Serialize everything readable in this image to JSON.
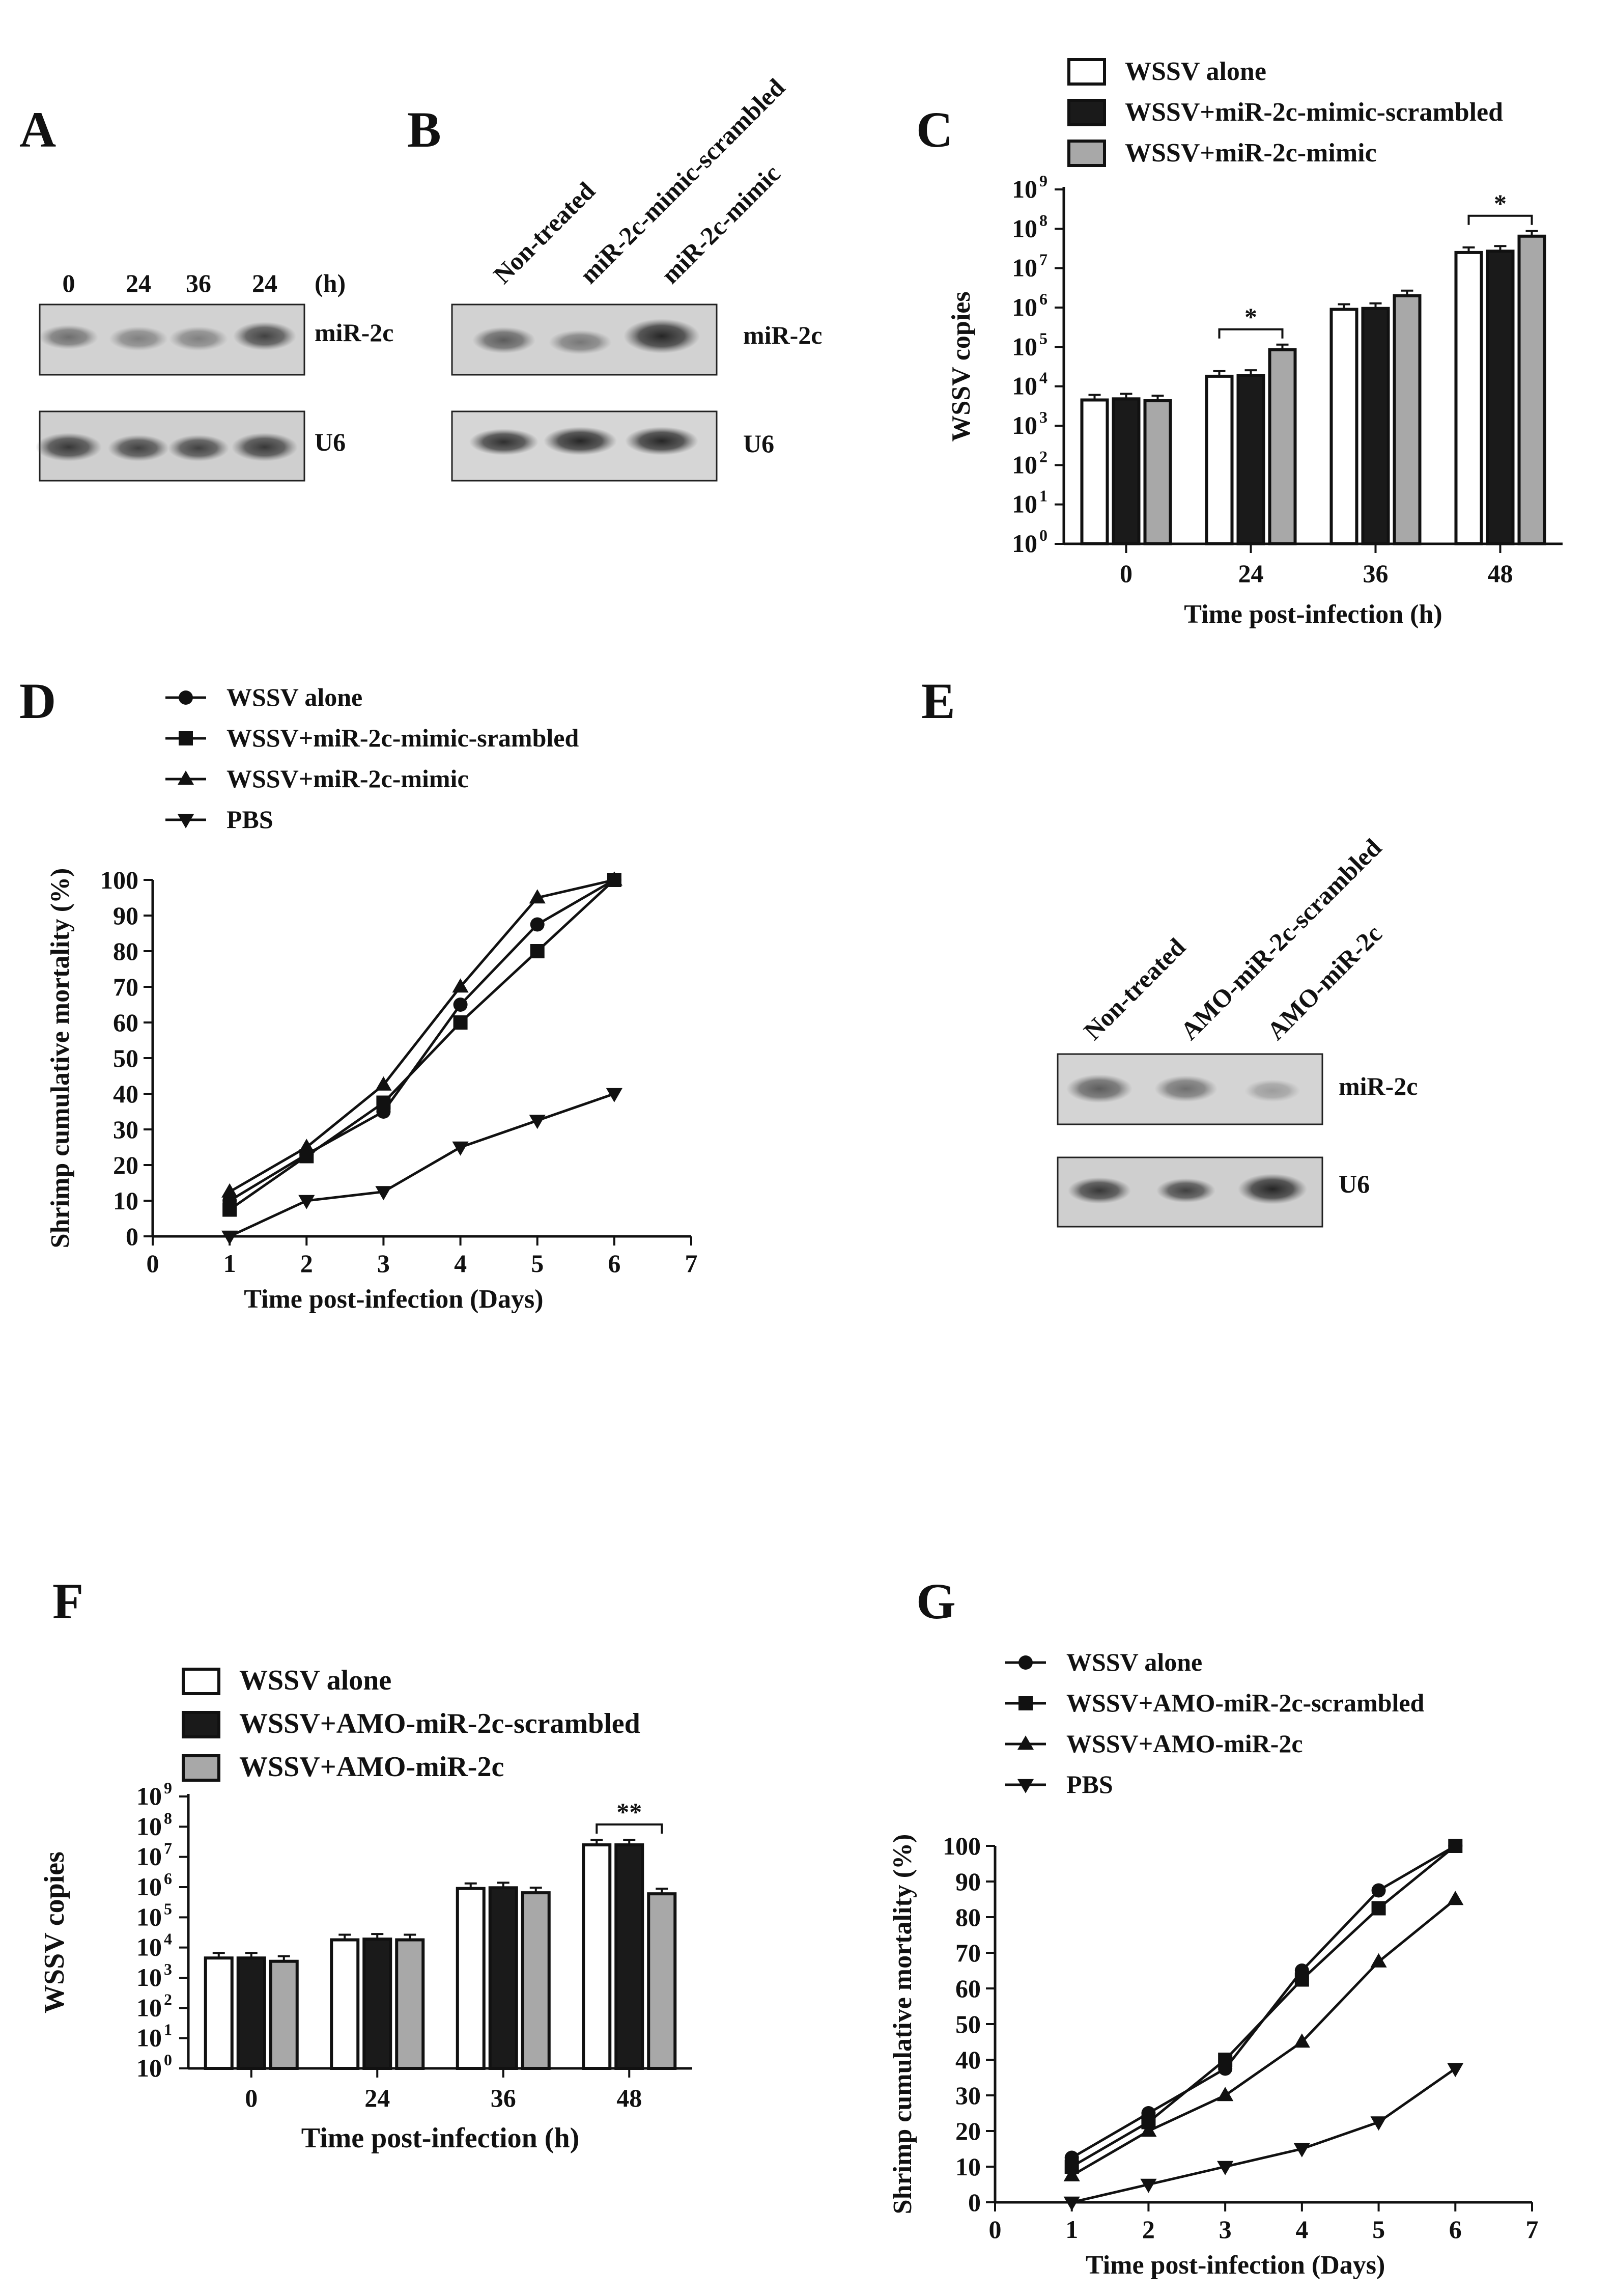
{
  "panels": {
    "A": {
      "letter": "A",
      "lanes": [
        "0",
        "24",
        "36",
        "24"
      ],
      "unit": "(h)",
      "bands": [
        "miR-2c",
        "U6"
      ]
    },
    "B": {
      "letter": "B",
      "lanes": [
        "Non-treated",
        "miR-2c-mimic-scrambled",
        "miR-2c-mimic"
      ],
      "bands": [
        "miR-2c",
        "U6"
      ]
    },
    "E": {
      "letter": "E",
      "lanes": [
        "Non-treated",
        "AMO-miR-2c-scrambled",
        "AMO-miR-2c"
      ],
      "bands": [
        "miR-2c",
        "U6"
      ]
    },
    "C": {
      "letter": "C"
    },
    "D": {
      "letter": "D"
    },
    "F": {
      "letter": "F"
    },
    "G": {
      "letter": "G"
    }
  },
  "chart_data": [
    {
      "id": "C",
      "type": "bar",
      "scale": "log10",
      "categories": [
        "0",
        "24",
        "36",
        "48"
      ],
      "series": [
        {
          "name": "WSSV alone",
          "color": "#ffffff",
          "values": [
            4500,
            18000,
            900000,
            25000000
          ]
        },
        {
          "name": "WSSV+miR-2c-mimic-scrambled",
          "color": "#1a1a1a",
          "values": [
            4800,
            19000,
            950000,
            27000000
          ]
        },
        {
          "name": "WSSV+miR-2c-mimic",
          "color": "#a8a8a8",
          "values": [
            4300,
            85000,
            2000000,
            65000000
          ]
        }
      ],
      "ytick_exponents": [
        0,
        1,
        2,
        3,
        4,
        5,
        6,
        7,
        8,
        9
      ],
      "ytick_base": "10",
      "ylim_exponent": [
        0,
        9
      ],
      "xlabel": "Time post-infection (h)",
      "ylabel": "WSSV copies",
      "significance": [
        {
          "category": "24",
          "label": "*"
        },
        {
          "category": "48",
          "label": "*"
        }
      ]
    },
    {
      "id": "D",
      "type": "line",
      "x": [
        1,
        2,
        3,
        4,
        5,
        6
      ],
      "series": [
        {
          "name": "WSSV alone",
          "marker": "circle",
          "values": [
            10,
            23,
            35,
            65,
            87.5,
            100
          ]
        },
        {
          "name": "WSSV+miR-2c-mimic-srambled",
          "marker": "square",
          "values": [
            7.5,
            22.5,
            37.5,
            60,
            80,
            100
          ]
        },
        {
          "name": "WSSV+miR-2c-mimic",
          "marker": "triangle-up",
          "values": [
            12.5,
            25,
            42.5,
            70,
            95,
            100
          ]
        },
        {
          "name": "PBS",
          "marker": "triangle-down",
          "values": [
            0,
            10,
            12.5,
            25,
            32.5,
            40
          ]
        }
      ],
      "xticks": [
        "0",
        "1",
        "2",
        "3",
        "4",
        "5",
        "6",
        "7"
      ],
      "yticks": [
        "0",
        "10",
        "20",
        "30",
        "40",
        "50",
        "60",
        "70",
        "80",
        "90",
        "100"
      ],
      "xlim": [
        0,
        7
      ],
      "ylim": [
        0,
        100
      ],
      "xlabel": "Time post-infection (Days)",
      "ylabel": "Shrimp cumulative mortality (%)"
    },
    {
      "id": "F",
      "type": "bar",
      "scale": "log10",
      "categories": [
        "0",
        "24",
        "36",
        "48"
      ],
      "series": [
        {
          "name": "WSSV alone",
          "color": "#ffffff",
          "values": [
            4500,
            18000,
            900000,
            25000000
          ]
        },
        {
          "name": "WSSV+AMO-miR-2c-scrambled",
          "color": "#1a1a1a",
          "values": [
            4500,
            19000,
            950000,
            25000000
          ]
        },
        {
          "name": "WSSV+AMO-miR-2c",
          "color": "#a8a8a8",
          "values": [
            3500,
            18000,
            650000,
            600000
          ]
        }
      ],
      "ytick_exponents": [
        0,
        1,
        2,
        3,
        4,
        5,
        6,
        7,
        8,
        9
      ],
      "ytick_base": "10",
      "ylim_exponent": [
        0,
        9
      ],
      "xlabel": "Time post-infection (h)",
      "ylabel": "WSSV copies",
      "significance": [
        {
          "category": "48",
          "label": "**"
        }
      ]
    },
    {
      "id": "G",
      "type": "line",
      "x": [
        1,
        2,
        3,
        4,
        5,
        6
      ],
      "series": [
        {
          "name": "WSSV alone",
          "marker": "circle",
          "values": [
            12.5,
            25,
            37.5,
            65,
            87.5,
            100
          ]
        },
        {
          "name": "WSSV+AMO-miR-2c-scrambled",
          "marker": "square",
          "values": [
            10,
            22.5,
            40,
            62.5,
            82.5,
            100
          ]
        },
        {
          "name": "WSSV+AMO-miR-2c",
          "marker": "triangle-up",
          "values": [
            7.5,
            20,
            30,
            45,
            67.5,
            85
          ]
        },
        {
          "name": "PBS",
          "marker": "triangle-down",
          "values": [
            0,
            5,
            10,
            15,
            22.5,
            37.5
          ]
        }
      ],
      "xticks": [
        "0",
        "1",
        "2",
        "3",
        "4",
        "5",
        "6",
        "7"
      ],
      "yticks": [
        "0",
        "10",
        "20",
        "30",
        "40",
        "50",
        "60",
        "70",
        "80",
        "90",
        "100"
      ],
      "xlim": [
        0,
        7
      ],
      "ylim": [
        0,
        100
      ],
      "xlabel": "Time post-infection (Days)",
      "ylabel": "Shrimp cumulative mortality (%)"
    }
  ]
}
